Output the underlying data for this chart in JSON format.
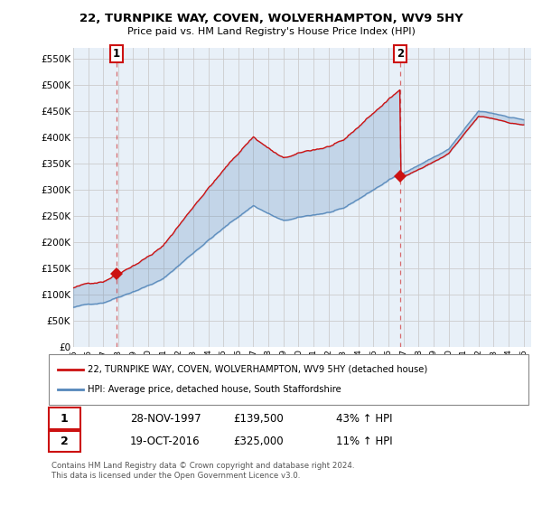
{
  "title": "22, TURNPIKE WAY, COVEN, WOLVERHAMPTON, WV9 5HY",
  "subtitle": "Price paid vs. HM Land Registry's House Price Index (HPI)",
  "legend_line1": "22, TURNPIKE WAY, COVEN, WOLVERHAMPTON, WV9 5HY (detached house)",
  "legend_line2": "HPI: Average price, detached house, South Staffordshire",
  "footnote": "Contains HM Land Registry data © Crown copyright and database right 2024.\nThis data is licensed under the Open Government Licence v3.0.",
  "sale1_label": "1",
  "sale1_date": "28-NOV-1997",
  "sale1_price": "£139,500",
  "sale1_hpi": "43% ↑ HPI",
  "sale2_label": "2",
  "sale2_date": "19-OCT-2016",
  "sale2_price": "£325,000",
  "sale2_hpi": "11% ↑ HPI",
  "hpi_color": "#5588bb",
  "price_color": "#cc1111",
  "marker_color": "#cc1111",
  "fill_color": "#ddeeff",
  "plot_bg_color": "#e8f0f8",
  "sale1_year": 1997.9,
  "sale2_year": 2016.8,
  "ylim": [
    0,
    570000
  ],
  "xlim_start": 1995,
  "xlim_end": 2025.5,
  "yticks": [
    0,
    50000,
    100000,
    150000,
    200000,
    250000,
    300000,
    350000,
    400000,
    450000,
    500000,
    550000
  ],
  "ytick_labels": [
    "£0",
    "£50K",
    "£100K",
    "£150K",
    "£200K",
    "£250K",
    "£300K",
    "£350K",
    "£400K",
    "£450K",
    "£500K",
    "£550K"
  ],
  "xticks": [
    1995,
    1996,
    1997,
    1998,
    1999,
    2000,
    2001,
    2002,
    2003,
    2004,
    2005,
    2006,
    2007,
    2008,
    2009,
    2010,
    2011,
    2012,
    2013,
    2014,
    2015,
    2016,
    2017,
    2018,
    2019,
    2020,
    2021,
    2022,
    2023,
    2024,
    2025
  ],
  "background_color": "#ffffff",
  "grid_color": "#cccccc",
  "sale1_marker_value": 139500,
  "sale2_marker_value": 325000
}
